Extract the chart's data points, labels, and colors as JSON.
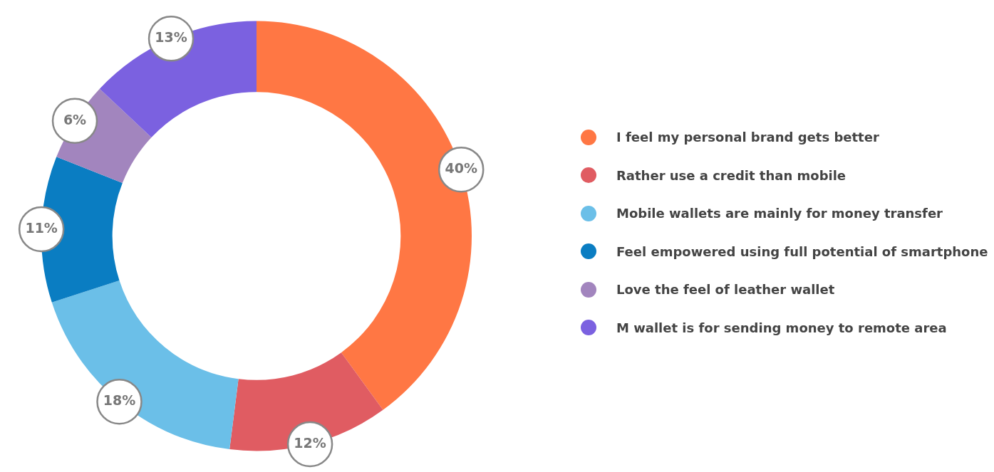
{
  "chart_data": {
    "type": "donut",
    "categories": [
      "I feel my personal brand gets better",
      "Rather use a credit than mobile",
      "Mobile wallets are mainly for money transfer",
      "Feel empowered using full potential of smartphone",
      "Love the feel of leather wallet",
      "M wallet is for sending money to remote area"
    ],
    "values": [
      40,
      12,
      18,
      11,
      6,
      13
    ],
    "value_labels": [
      "40%",
      "12%",
      "18%",
      "11%",
      "6%",
      "13%"
    ],
    "colors": [
      "#ff7744",
      "#e05c62",
      "#6bbfe8",
      "#0a7dc2",
      "#a285be",
      "#7b61e0"
    ],
    "legend": "right"
  }
}
